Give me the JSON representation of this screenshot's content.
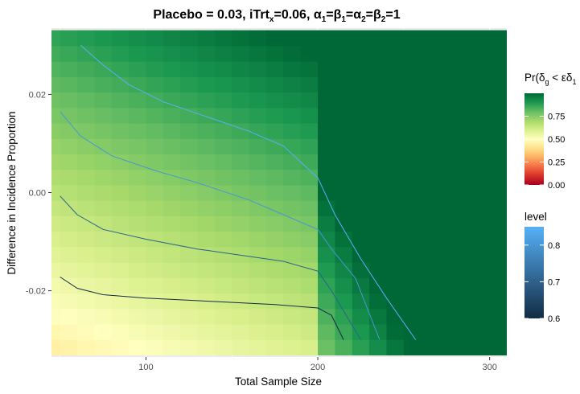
{
  "chart_data": {
    "type": "heatmap",
    "title_parts": {
      "prefix": "Placebo = 0.03, iTrt",
      "sub_x": "x",
      "mid": "=0.06, ",
      "alpha": "α",
      "beta": "β",
      "one": "1",
      "two": "2",
      "eq": "=",
      "suffix": "=1"
    },
    "xlabel": "Total Sample Size",
    "ylabel": "Difference in Incidence Proportion",
    "x_ticks": [
      100,
      200,
      300
    ],
    "x_tick_labels": [
      "100",
      "200",
      "300"
    ],
    "y_ticks": [
      -0.02,
      0.0,
      0.02
    ],
    "y_tick_labels": [
      "-0.02",
      "0.00",
      "0.02"
    ],
    "xlim": [
      45,
      310
    ],
    "ylim": [
      -0.0335,
      0.0335
    ],
    "grid": true,
    "heat": {
      "x_range": [
        45,
        305
      ],
      "x_step": 10,
      "y_range": [
        -0.0315,
        0.0315
      ],
      "y_rows": 21,
      "jump_x": 205,
      "note": "probability surface: low (pale yellow) at small n and negative difference, high (dark green) at large n and positive difference"
    },
    "fill_legend": {
      "title_prefix": "Pr(δ",
      "title_sub": "g",
      "title_mid": " < εδ",
      "title_sub2": "1",
      "breaks": [
        0.0,
        0.25,
        0.5,
        0.75
      ],
      "labels": [
        "0.00",
        "0.25",
        "0.50",
        "0.75"
      ],
      "limits": [
        0.0,
        1.0
      ],
      "colors": [
        "#a50026",
        "#d73027",
        "#f46d43",
        "#fdae61",
        "#fee08b",
        "#ffffbf",
        "#d9ef8b",
        "#a6d96a",
        "#66bd63",
        "#1a9850",
        "#006837"
      ]
    },
    "level_legend": {
      "title": "level",
      "breaks": [
        0.6,
        0.7,
        0.8
      ],
      "labels": [
        "0.6",
        "0.7",
        "0.8"
      ],
      "limits": [
        0.6,
        0.85
      ],
      "low_color": "#132b43",
      "high_color": "#56b1f7"
    },
    "contours": [
      {
        "level": 0.85,
        "points": [
          [
            62,
            0.03
          ],
          [
            75,
            0.026
          ],
          [
            90,
            0.022
          ],
          [
            110,
            0.0185
          ],
          [
            135,
            0.0155
          ],
          [
            160,
            0.0125
          ],
          [
            180,
            0.0095
          ],
          [
            200,
            0.003
          ],
          [
            210,
            -0.0045
          ],
          [
            225,
            -0.0135
          ],
          [
            240,
            -0.0215
          ],
          [
            257,
            -0.03
          ]
        ]
      },
      {
        "level": 0.8,
        "points": [
          [
            50,
            0.0165
          ],
          [
            62,
            0.0115
          ],
          [
            80,
            0.0075
          ],
          [
            105,
            0.0045
          ],
          [
            130,
            0.002
          ],
          [
            160,
            -0.0015
          ],
          [
            180,
            -0.0045
          ],
          [
            200,
            -0.0075
          ],
          [
            208,
            -0.0115
          ],
          [
            222,
            -0.0175
          ],
          [
            236,
            -0.03
          ]
        ]
      },
      {
        "level": 0.7,
        "points": [
          [
            50,
            -0.0007
          ],
          [
            60,
            -0.0045
          ],
          [
            75,
            -0.0075
          ],
          [
            100,
            -0.0095
          ],
          [
            130,
            -0.0115
          ],
          [
            160,
            -0.013
          ],
          [
            180,
            -0.014
          ],
          [
            200,
            -0.016
          ],
          [
            208,
            -0.02
          ],
          [
            225,
            -0.03
          ]
        ]
      },
      {
        "level": 0.6,
        "points": [
          [
            50,
            -0.0172
          ],
          [
            60,
            -0.0195
          ],
          [
            75,
            -0.0208
          ],
          [
            100,
            -0.0215
          ],
          [
            140,
            -0.0222
          ],
          [
            175,
            -0.0228
          ],
          [
            200,
            -0.0235
          ],
          [
            208,
            -0.025
          ],
          [
            215,
            -0.03
          ]
        ]
      }
    ]
  }
}
